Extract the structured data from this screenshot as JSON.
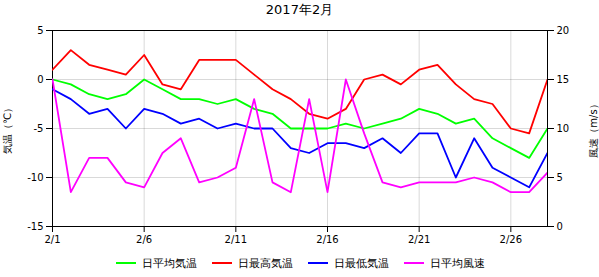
{
  "chart_data": {
    "type": "line",
    "title": "2017年2月",
    "x": [
      1,
      2,
      3,
      4,
      5,
      6,
      7,
      8,
      9,
      10,
      11,
      12,
      13,
      14,
      15,
      16,
      17,
      18,
      19,
      20,
      21,
      22,
      23,
      24,
      25,
      26,
      27,
      28
    ],
    "series": [
      {
        "name": "日平均気温",
        "color": "#00ff00",
        "values": [
          0.0,
          -0.5,
          -1.5,
          -2.0,
          -1.5,
          0.0,
          -1.0,
          -2.0,
          -2.0,
          -2.5,
          -2.0,
          -3.0,
          -3.5,
          -5.0,
          -5.0,
          -5.0,
          -4.5,
          -5.0,
          -4.5,
          -4.0,
          -3.0,
          -3.5,
          -4.5,
          -4.0,
          -6.0,
          -7.0,
          -8.0,
          -5.0
        ]
      },
      {
        "name": "日最高気温",
        "color": "#ff0000",
        "values": [
          1.0,
          3.0,
          1.5,
          1.0,
          0.5,
          2.5,
          -0.5,
          -1.0,
          2.0,
          2.0,
          2.0,
          0.5,
          -1.0,
          -2.0,
          -3.5,
          -4.0,
          -3.0,
          0.0,
          0.5,
          -0.5,
          1.0,
          1.5,
          -0.5,
          -2.0,
          -2.5,
          -5.0,
          -5.5,
          0.0
        ]
      },
      {
        "name": "日最低気温",
        "color": "#0000ff",
        "values": [
          -1.0,
          -2.0,
          -3.5,
          -3.0,
          -5.0,
          -3.0,
          -3.5,
          -4.5,
          -4.0,
          -5.0,
          -4.5,
          -5.0,
          -5.0,
          -7.0,
          -7.5,
          -6.5,
          -6.5,
          -7.0,
          -6.0,
          -7.5,
          -5.5,
          -5.5,
          -10.0,
          -6.0,
          -9.0,
          -10.0,
          -11.0,
          -7.5
        ]
      },
      {
        "name": "日平均風速",
        "color": "#ff00ff",
        "axis": "y2",
        "values": [
          15.0,
          3.5,
          7.0,
          7.0,
          4.5,
          4.0,
          7.5,
          9.0,
          4.5,
          5.0,
          6.0,
          13.0,
          4.5,
          3.5,
          13.0,
          3.5,
          15.0,
          9.5,
          4.5,
          4.0,
          4.5,
          4.5,
          4.5,
          5.0,
          4.5,
          3.5,
          3.5,
          5.5
        ]
      }
    ],
    "xlim": [
      1,
      28
    ],
    "xticks": [
      {
        "value": 1,
        "label": "2/1"
      },
      {
        "value": 6,
        "label": "2/6"
      },
      {
        "value": 11,
        "label": "2/11"
      },
      {
        "value": 16,
        "label": "2/16"
      },
      {
        "value": 21,
        "label": "2/21"
      },
      {
        "value": 26,
        "label": "2/26"
      }
    ],
    "ylim": [
      -15,
      5
    ],
    "yticks": [
      -15,
      -10,
      -5,
      0,
      5
    ],
    "y2lim": [
      0,
      20
    ],
    "y2ticks": [
      0,
      5,
      10,
      15,
      20
    ],
    "ylabel": "気温（℃）",
    "y2label": "風速（m/s）",
    "grid": true,
    "legend": "bottom"
  }
}
